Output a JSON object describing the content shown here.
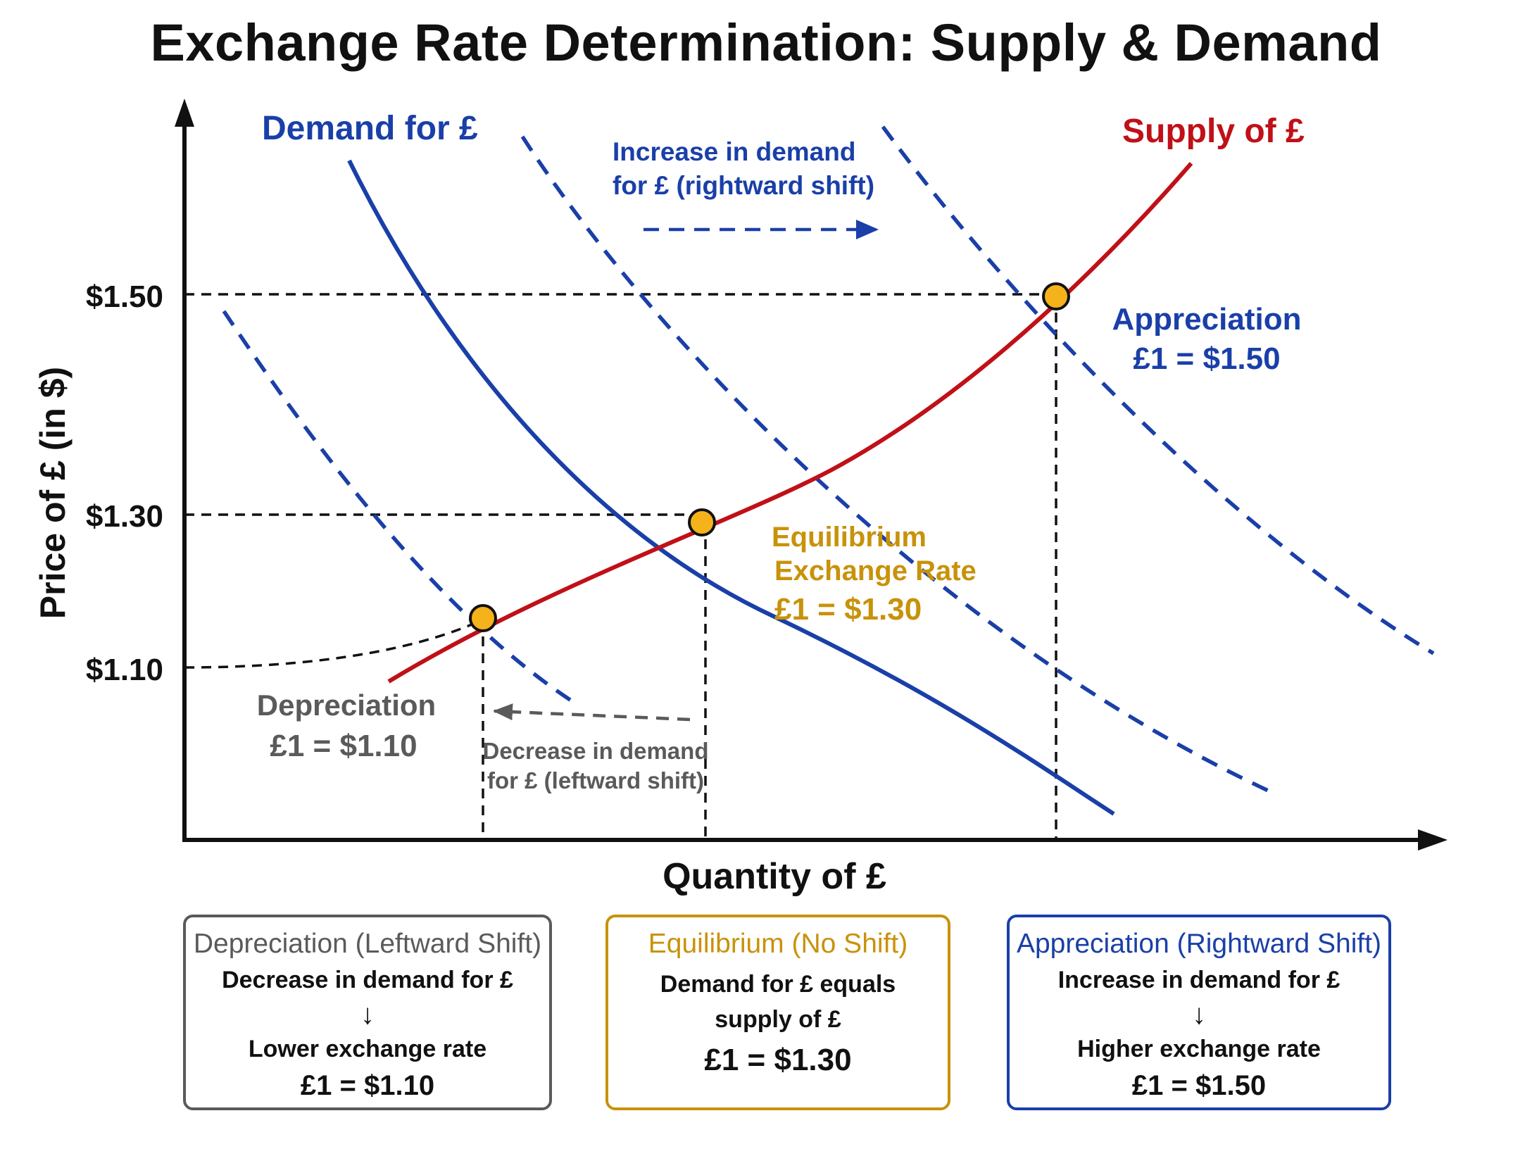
{
  "title": "Exchange Rate Determination: Supply & Demand",
  "colors": {
    "demand": "#1a3fa8",
    "supply": "#c01018",
    "equilibrium": "#c8920a",
    "depreciation": "#5a5a5a",
    "point_fill": "#f5b21a",
    "axis": "#111111"
  },
  "axes": {
    "y_label": "Price of £ (in $)",
    "x_label": "Quantity of £",
    "y_ticks": [
      "$1.50",
      "$1.30",
      "$1.10"
    ]
  },
  "curves": {
    "demand_label": "Demand for £",
    "supply_label": "Supply of £"
  },
  "annotations": {
    "increase_line1": "Increase in demand",
    "increase_line2": "for £ (rightward shift)",
    "decrease_line1": "Decrease in demand",
    "decrease_line2": "for £ (leftward shift)",
    "appreciation_title": "Appreciation",
    "appreciation_rate": "£1 = $1.50",
    "equilibrium_line1": "Equilibrium",
    "equilibrium_line2": "Exchange Rate",
    "equilibrium_rate": "£1 = $1.30",
    "depreciation_title": "Depreciation",
    "depreciation_rate": "£1 = $1.10"
  },
  "boxes": {
    "depreciation": {
      "title": "Depreciation (Leftward Shift)",
      "line1": "Decrease in demand for £",
      "arrow": "↓",
      "line2": "Lower exchange rate",
      "rate": "£1 = $1.10"
    },
    "equilibrium": {
      "title": "Equilibrium (No Shift)",
      "line1": "Demand for £ equals",
      "line2": "supply of £",
      "rate": "£1 = $1.30"
    },
    "appreciation": {
      "title": "Appreciation (Rightward Shift)",
      "line1": "Increase in demand for £",
      "arrow": "↓",
      "line2": "Higher exchange rate",
      "rate": "£1 = $1.50"
    }
  }
}
